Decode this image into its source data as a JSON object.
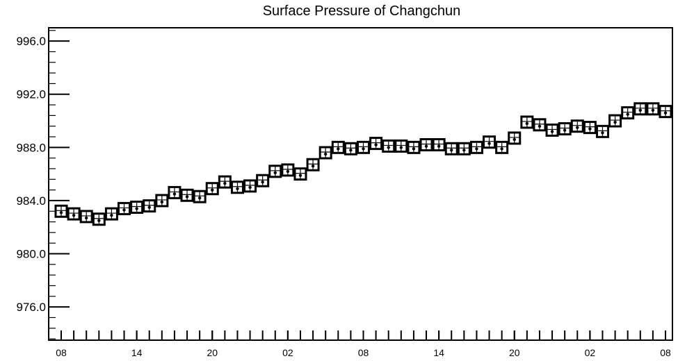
{
  "chart_data": {
    "type": "scatter",
    "title": "Surface Pressure of Changchun",
    "xlabel": "",
    "ylabel": "",
    "ylim": [
      973.5,
      997.0
    ],
    "y_major_ticks": [
      976.0,
      980.0,
      984.0,
      988.0,
      992.0,
      996.0
    ],
    "y_tick_labels": [
      "976.0",
      "980.0",
      "984.0",
      "988.0",
      "992.0",
      "996.0"
    ],
    "y_minor_step": 0.8,
    "x_hours_range": [
      0,
      48
    ],
    "x_tick_hours": [
      0,
      6,
      12,
      18,
      24,
      30,
      36,
      42,
      48
    ],
    "x_tick_labels": [
      "08",
      "14",
      "20",
      "02",
      "08",
      "14",
      "20",
      "02",
      "08"
    ],
    "grid": false,
    "legend": "none",
    "series": [
      {
        "marker": "box-with-cross",
        "x": [
          0,
          1,
          2,
          3,
          4,
          5,
          6,
          7,
          8,
          9,
          10,
          11,
          12,
          13,
          14,
          15,
          16,
          17,
          18,
          19,
          20,
          21,
          22,
          23,
          24,
          25,
          26,
          27,
          28,
          29,
          30,
          31,
          32,
          33,
          34,
          35,
          36,
          37,
          38,
          39,
          40,
          41,
          42,
          43,
          44,
          45,
          46,
          47,
          48
        ],
        "y": [
          983.2,
          983.0,
          982.8,
          982.6,
          983.0,
          983.4,
          983.5,
          983.6,
          984.0,
          984.6,
          984.4,
          984.3,
          984.9,
          985.4,
          985.0,
          985.1,
          985.5,
          986.2,
          986.3,
          986.0,
          986.7,
          987.6,
          988.0,
          987.9,
          988.0,
          988.3,
          988.1,
          988.1,
          988.0,
          988.2,
          988.2,
          987.9,
          987.9,
          988.0,
          988.4,
          988.0,
          988.7,
          989.9,
          989.7,
          989.3,
          989.4,
          989.6,
          989.5,
          989.2,
          990.0,
          990.6,
          990.9,
          990.9,
          990.7
        ]
      }
    ]
  }
}
